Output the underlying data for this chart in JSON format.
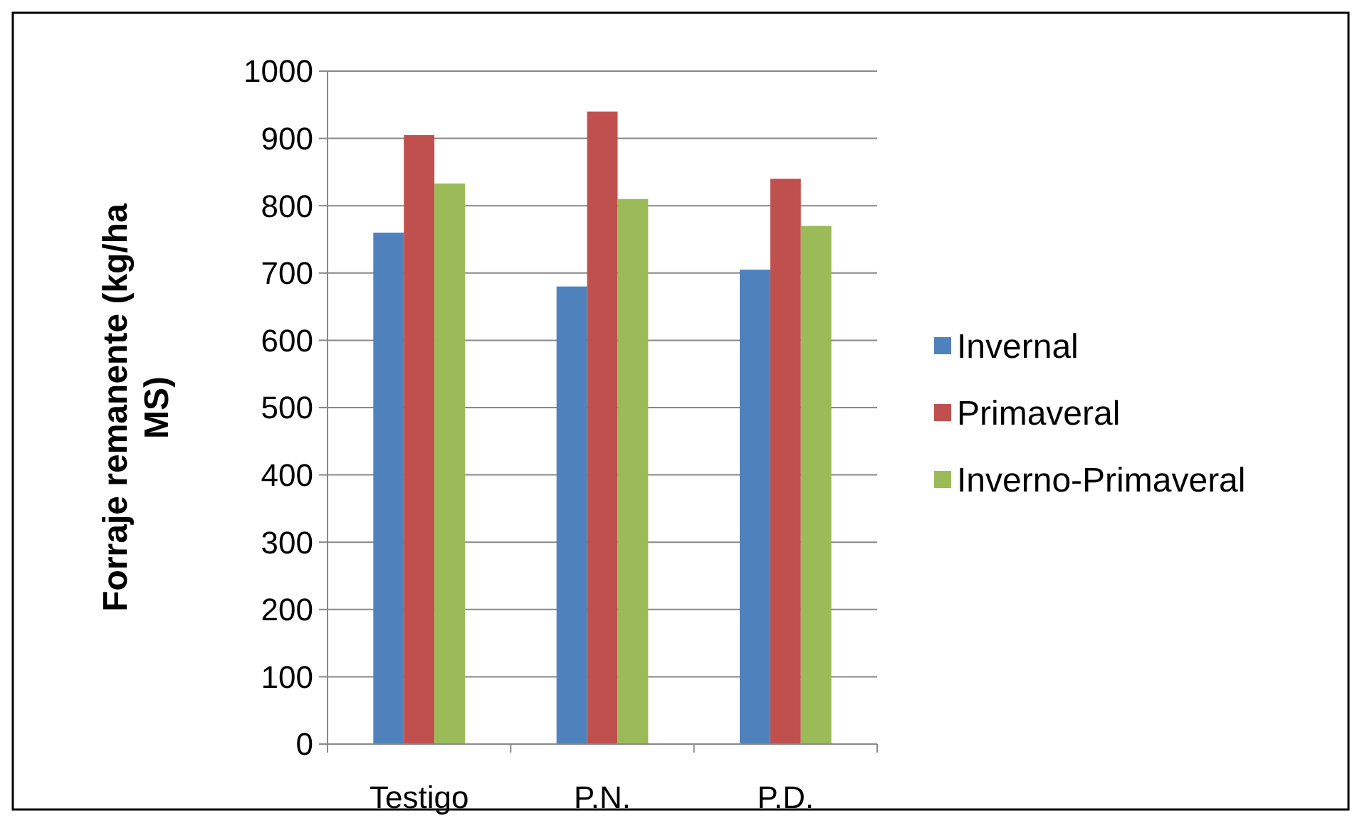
{
  "chart_data": {
    "type": "bar",
    "ylabel": "Forraje remanente (kg/ha MS)",
    "categories": [
      "Testigo",
      "P.N.",
      "P.D."
    ],
    "series": [
      {
        "name": "Invernal",
        "color": "#4f81bd",
        "values": [
          760,
          680,
          705
        ]
      },
      {
        "name": "Primaveral",
        "color": "#c0504d",
        "values": [
          905,
          940,
          840
        ]
      },
      {
        "name": "Inverno-Primaveral",
        "color": "#9bbb59",
        "values": [
          833,
          810,
          770
        ]
      }
    ],
    "ylim": [
      0,
      1000
    ],
    "yticks": [
      0,
      100,
      200,
      300,
      400,
      500,
      600,
      700,
      800,
      900,
      1000
    ],
    "grid": "y",
    "legend": "right"
  }
}
